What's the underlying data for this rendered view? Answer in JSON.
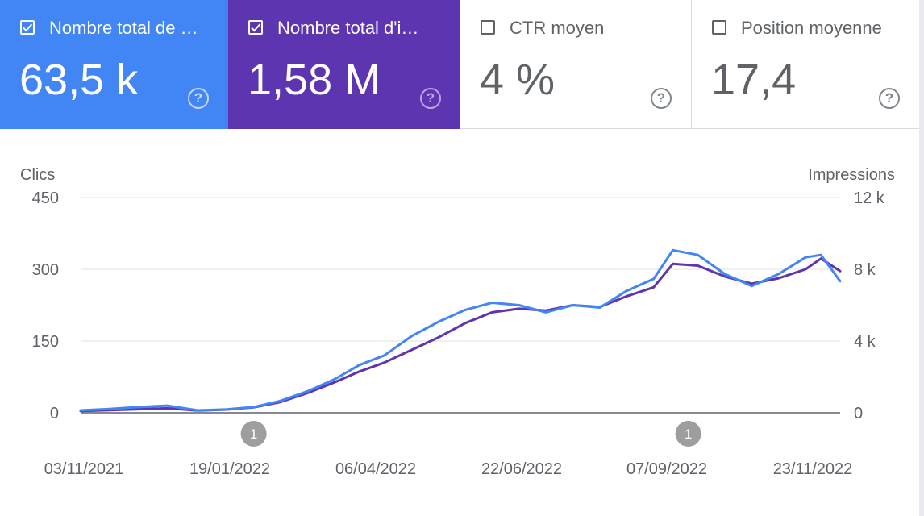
{
  "metrics": [
    {
      "label": "Nombre total de …",
      "value": "63,5 k",
      "checked": true,
      "color": "#4285f4"
    },
    {
      "label": "Nombre total d'i…",
      "value": "1,58 M",
      "checked": true,
      "color": "#5e35b1"
    },
    {
      "label": "CTR moyen",
      "value": "4 %",
      "checked": false
    },
    {
      "label": "Position moyenne",
      "value": "17,4",
      "checked": false
    }
  ],
  "help_glyph": "?",
  "chart_data": {
    "type": "line",
    "left_axis": {
      "label": "Clics",
      "ticks": [
        "450",
        "300",
        "150",
        "0"
      ],
      "range": [
        0,
        450
      ]
    },
    "right_axis": {
      "label": "Impressions",
      "ticks": [
        "12 k",
        "8 k",
        "4 k",
        "0"
      ],
      "range": [
        0,
        12000
      ]
    },
    "x_tick_labels": [
      "03/11/2021",
      "19/01/2022",
      "06/04/2022",
      "22/06/2022",
      "07/09/2022",
      "23/11/2022"
    ],
    "x_range": [
      "03/11/2021",
      "03/12/2022"
    ],
    "grid": true,
    "annotations": [
      {
        "date": "01/02/2022",
        "label": "1"
      },
      {
        "date": "15/09/2022",
        "label": "1"
      }
    ],
    "series": [
      {
        "axis": "left",
        "color": "#4285f4",
        "points": [
          [
            "03/11/2021",
            5
          ],
          [
            "18/11/2021",
            8
          ],
          [
            "03/12/2021",
            12
          ],
          [
            "18/12/2021",
            15
          ],
          [
            "03/01/2022",
            5
          ],
          [
            "18/01/2022",
            7
          ],
          [
            "01/02/2022",
            12
          ],
          [
            "15/02/2022",
            25
          ],
          [
            "01/03/2022",
            45
          ],
          [
            "15/03/2022",
            70
          ],
          [
            "28/03/2022",
            100
          ],
          [
            "10/04/2022",
            120
          ],
          [
            "24/04/2022",
            160
          ],
          [
            "08/05/2022",
            190
          ],
          [
            "22/05/2022",
            215
          ],
          [
            "05/06/2022",
            230
          ],
          [
            "19/06/2022",
            225
          ],
          [
            "03/07/2022",
            210
          ],
          [
            "17/07/2022",
            225
          ],
          [
            "31/07/2022",
            220
          ],
          [
            "14/08/2022",
            255
          ],
          [
            "28/08/2022",
            280
          ],
          [
            "07/09/2022",
            340
          ],
          [
            "20/09/2022",
            330
          ],
          [
            "04/10/2022",
            290
          ],
          [
            "18/10/2022",
            265
          ],
          [
            "01/11/2022",
            290
          ],
          [
            "15/11/2022",
            325
          ],
          [
            "23/11/2022",
            330
          ],
          [
            "03/12/2022",
            275
          ]
        ]
      },
      {
        "axis": "right",
        "color": "#5e35b1",
        "points": [
          [
            "03/11/2021",
            100
          ],
          [
            "18/11/2021",
            150
          ],
          [
            "03/12/2021",
            200
          ],
          [
            "18/12/2021",
            250
          ],
          [
            "03/01/2022",
            120
          ],
          [
            "18/01/2022",
            180
          ],
          [
            "01/02/2022",
            300
          ],
          [
            "15/02/2022",
            600
          ],
          [
            "01/03/2022",
            1100
          ],
          [
            "15/03/2022",
            1700
          ],
          [
            "28/03/2022",
            2300
          ],
          [
            "10/04/2022",
            2800
          ],
          [
            "24/04/2022",
            3500
          ],
          [
            "08/05/2022",
            4200
          ],
          [
            "22/05/2022",
            5000
          ],
          [
            "05/06/2022",
            5600
          ],
          [
            "19/06/2022",
            5800
          ],
          [
            "03/07/2022",
            5700
          ],
          [
            "17/07/2022",
            6000
          ],
          [
            "31/07/2022",
            5900
          ],
          [
            "14/08/2022",
            6500
          ],
          [
            "28/08/2022",
            7000
          ],
          [
            "07/09/2022",
            8300
          ],
          [
            "20/09/2022",
            8200
          ],
          [
            "04/10/2022",
            7600
          ],
          [
            "18/10/2022",
            7200
          ],
          [
            "01/11/2022",
            7500
          ],
          [
            "15/11/2022",
            8000
          ],
          [
            "23/11/2022",
            8600
          ],
          [
            "03/12/2022",
            7900
          ]
        ]
      }
    ]
  }
}
